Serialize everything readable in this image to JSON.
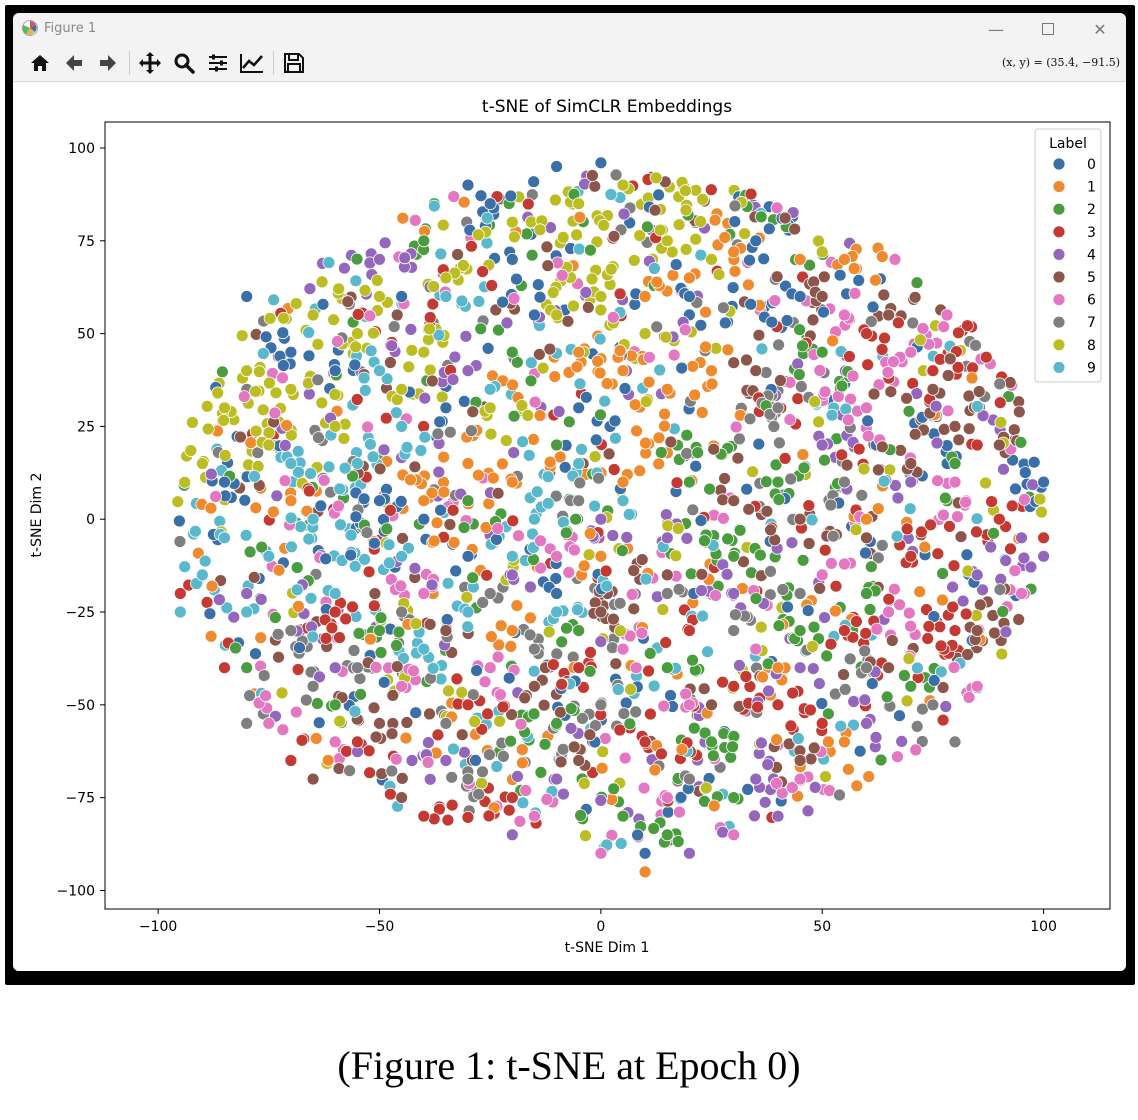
{
  "window": {
    "title": "Figure 1",
    "controls": [
      "minimize",
      "maximize",
      "close"
    ]
  },
  "toolbar": {
    "tools": [
      {
        "name": "home-icon"
      },
      {
        "name": "back-arrow-icon"
      },
      {
        "name": "forward-arrow-icon"
      },
      {
        "name": "pan-icon"
      },
      {
        "name": "zoom-icon"
      },
      {
        "name": "configure-subplots-icon"
      },
      {
        "name": "edit-axis-icon"
      },
      {
        "name": "save-icon"
      }
    ],
    "coordinates": "(x, y) = (35.4, −91.5)"
  },
  "chart_data": {
    "type": "scatter",
    "title": "t-SNE of SimCLR Embeddings",
    "xlabel": "t-SNE Dim 1",
    "ylabel": "t-SNE Dim 2",
    "xlim": [
      -112,
      115
    ],
    "ylim": [
      -105,
      107
    ],
    "xticks": [
      -100,
      -50,
      0,
      50,
      100
    ],
    "yticks": [
      100,
      75,
      50,
      25,
      0,
      -25,
      -50,
      -75,
      -100
    ],
    "tick_labels_x": [
      "−100",
      "−50",
      "0",
      "50",
      "100"
    ],
    "tick_labels_y": [
      "100",
      "75",
      "50",
      "25",
      "0",
      "−25",
      "−50",
      "−75",
      "−100"
    ],
    "grid": false,
    "legend": {
      "title": "Label",
      "placement": "top-right",
      "entries": [
        "0",
        "1",
        "2",
        "3",
        "4",
        "5",
        "6",
        "7",
        "8",
        "9"
      ]
    },
    "series": [
      {
        "name": "0",
        "color": "#3a6fa8",
        "points": [
          [
            -30,
            90
          ],
          [
            -25,
            85
          ],
          [
            -20,
            70
          ],
          [
            -10,
            95
          ],
          [
            0,
            96
          ],
          [
            -45,
            60
          ],
          [
            -60,
            40
          ],
          [
            -80,
            60
          ],
          [
            -40,
            0
          ],
          [
            -50,
            5
          ],
          [
            -30,
            -10
          ],
          [
            -85,
            10
          ],
          [
            -70,
            45
          ],
          [
            -35,
            30
          ],
          [
            -15,
            55
          ],
          [
            -5,
            30
          ],
          [
            20,
            60
          ],
          [
            35,
            75
          ],
          [
            45,
            60
          ],
          [
            10,
            -90
          ],
          [
            -10,
            -20
          ],
          [
            100,
            10
          ]
        ]
      },
      {
        "name": "1",
        "color": "#f08a2e",
        "points": [
          [
            10,
            60
          ],
          [
            20,
            65
          ],
          [
            30,
            72
          ],
          [
            45,
            70
          ],
          [
            55,
            70
          ],
          [
            5,
            40
          ],
          [
            -5,
            45
          ],
          [
            15,
            35
          ],
          [
            25,
            40
          ],
          [
            -20,
            10
          ],
          [
            -30,
            15
          ],
          [
            -40,
            5
          ],
          [
            -10,
            20
          ],
          [
            5,
            10
          ],
          [
            0,
            -10
          ],
          [
            -20,
            -30
          ],
          [
            40,
            -40
          ],
          [
            55,
            -60
          ],
          [
            10,
            -95
          ],
          [
            60,
            0
          ],
          [
            -70,
            5
          ]
        ]
      },
      {
        "name": "2",
        "color": "#4a9d3e",
        "points": [
          [
            -40,
            75
          ],
          [
            -20,
            45
          ],
          [
            -10,
            20
          ],
          [
            -30,
            5
          ],
          [
            20,
            10
          ],
          [
            30,
            -10
          ],
          [
            15,
            -40
          ],
          [
            25,
            -60
          ],
          [
            -10,
            -55
          ],
          [
            5,
            -80
          ],
          [
            15,
            -85
          ],
          [
            -50,
            -30
          ],
          [
            -60,
            -50
          ],
          [
            45,
            -30
          ],
          [
            60,
            -20
          ],
          [
            80,
            15
          ],
          [
            40,
            10
          ],
          [
            50,
            45
          ],
          [
            -5,
            -30
          ],
          [
            30,
            -75
          ],
          [
            -80,
            -40
          ],
          [
            70,
            -45
          ]
        ]
      },
      {
        "name": "3",
        "color": "#c43a32",
        "points": [
          [
            60,
            50
          ],
          [
            75,
            40
          ],
          [
            85,
            20
          ],
          [
            90,
            0
          ],
          [
            70,
            -10
          ],
          [
            55,
            -30
          ],
          [
            40,
            -50
          ],
          [
            20,
            -30
          ],
          [
            -5,
            -40
          ],
          [
            -30,
            -50
          ],
          [
            -55,
            -60
          ],
          [
            -70,
            -65
          ],
          [
            -85,
            -40
          ],
          [
            -40,
            -80
          ],
          [
            -20,
            -75
          ],
          [
            10,
            -60
          ],
          [
            30,
            -45
          ],
          [
            50,
            -55
          ],
          [
            80,
            -30
          ],
          [
            100,
            -5
          ],
          [
            -95,
            -20
          ],
          [
            -60,
            -25
          ]
        ]
      },
      {
        "name": "4",
        "color": "#9467bd",
        "points": [
          [
            -50,
            70
          ],
          [
            -30,
            40
          ],
          [
            -20,
            -15
          ],
          [
            0,
            0
          ],
          [
            15,
            -5
          ],
          [
            30,
            -20
          ],
          [
            45,
            -40
          ],
          [
            60,
            -55
          ],
          [
            35,
            -70
          ],
          [
            20,
            -90
          ],
          [
            -10,
            -70
          ],
          [
            -35,
            -65
          ],
          [
            -60,
            -40
          ],
          [
            -80,
            -20
          ],
          [
            70,
            10
          ],
          [
            85,
            -15
          ],
          [
            95,
            -5
          ],
          [
            100,
            -10
          ],
          [
            50,
            20
          ],
          [
            -20,
            -85
          ],
          [
            40,
            -80
          ]
        ]
      },
      {
        "name": "5",
        "color": "#8c564b",
        "points": [
          [
            50,
            60
          ],
          [
            65,
            55
          ],
          [
            75,
            35
          ],
          [
            80,
            25
          ],
          [
            90,
            20
          ],
          [
            70,
            15
          ],
          [
            60,
            -5
          ],
          [
            45,
            0
          ],
          [
            30,
            5
          ],
          [
            15,
            -15
          ],
          [
            0,
            -25
          ],
          [
            -15,
            -45
          ],
          [
            -35,
            -30
          ],
          [
            -50,
            -55
          ],
          [
            -65,
            -70
          ],
          [
            25,
            -50
          ],
          [
            45,
            -65
          ],
          [
            65,
            -40
          ],
          [
            85,
            -30
          ],
          [
            35,
            40
          ],
          [
            -45,
            -75
          ],
          [
            -5,
            -65
          ]
        ]
      },
      {
        "name": "6",
        "color": "#e377c2",
        "points": [
          [
            55,
            55
          ],
          [
            70,
            45
          ],
          [
            80,
            10
          ],
          [
            65,
            -25
          ],
          [
            50,
            -15
          ],
          [
            35,
            -35
          ],
          [
            20,
            -50
          ],
          [
            5,
            -35
          ],
          [
            -10,
            -10
          ],
          [
            -25,
            -40
          ],
          [
            -45,
            -45
          ],
          [
            -60,
            -60
          ],
          [
            -75,
            -55
          ],
          [
            -15,
            -80
          ],
          [
            0,
            -90
          ],
          [
            15,
            -75
          ],
          [
            30,
            -85
          ],
          [
            45,
            -70
          ],
          [
            85,
            -45
          ],
          [
            95,
            -20
          ],
          [
            -40,
            -20
          ],
          [
            60,
            30
          ]
        ]
      },
      {
        "name": "7",
        "color": "#7f7f7f",
        "points": [
          [
            -70,
            -30
          ],
          [
            -55,
            -40
          ],
          [
            -35,
            -55
          ],
          [
            -15,
            -35
          ],
          [
            0,
            -50
          ],
          [
            15,
            -20
          ],
          [
            30,
            -30
          ],
          [
            45,
            -20
          ],
          [
            60,
            -40
          ],
          [
            75,
            -50
          ],
          [
            -25,
            -20
          ],
          [
            -45,
            -25
          ],
          [
            -65,
            -45
          ],
          [
            40,
            30
          ],
          [
            55,
            10
          ],
          [
            -5,
            5
          ],
          [
            20,
            -70
          ],
          [
            -30,
            -70
          ],
          [
            80,
            -60
          ],
          [
            -80,
            -55
          ]
        ]
      },
      {
        "name": "8",
        "color": "#bcbd22",
        "points": [
          [
            -20,
            80
          ],
          [
            -5,
            85
          ],
          [
            5,
            90
          ],
          [
            15,
            75
          ],
          [
            -35,
            65
          ],
          [
            -50,
            60
          ],
          [
            -65,
            55
          ],
          [
            -80,
            40
          ],
          [
            -85,
            30
          ],
          [
            -75,
            20
          ],
          [
            -60,
            25
          ],
          [
            -45,
            35
          ],
          [
            -25,
            30
          ],
          [
            -10,
            55
          ],
          [
            0,
            60
          ],
          [
            25,
            70
          ],
          [
            10,
            50
          ],
          [
            -40,
            45
          ],
          [
            -55,
            50
          ],
          [
            -70,
            35
          ],
          [
            -90,
            15
          ],
          [
            50,
            72
          ]
        ]
      },
      {
        "name": "9",
        "color": "#5ab8cc",
        "points": [
          [
            -35,
            60
          ],
          [
            -25,
            35
          ],
          [
            -45,
            25
          ],
          [
            -55,
            15
          ],
          [
            -65,
            0
          ],
          [
            -75,
            -10
          ],
          [
            -85,
            -5
          ],
          [
            -90,
            -15
          ],
          [
            -60,
            -20
          ],
          [
            -45,
            -10
          ],
          [
            -30,
            -25
          ],
          [
            -15,
            0
          ],
          [
            -5,
            15
          ],
          [
            -20,
            -10
          ],
          [
            -40,
            -35
          ],
          [
            -70,
            15
          ],
          [
            -50,
            40
          ],
          [
            -80,
            -25
          ],
          [
            5,
            5
          ],
          [
            -10,
            -25
          ],
          [
            -95,
            -25
          ]
        ]
      }
    ]
  },
  "caption": "(Figure 1: t-SNE at Epoch 0)"
}
